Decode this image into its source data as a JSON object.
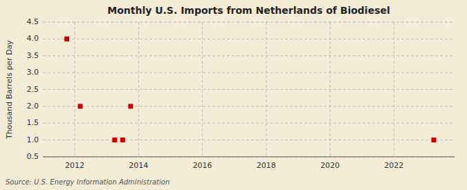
{
  "chart_data": {
    "type": "scatter",
    "title": "Monthly U.S. Imports from Netherlands of Biodiesel",
    "y_label": "Thousand Barrels per Day",
    "annotations": [
      "Source: U.S. Energy Information Administration"
    ],
    "x": [
      2011.75,
      2012.17,
      2013.25,
      2013.5,
      2013.75,
      2023.25
    ],
    "values": [
      4.0,
      2.0,
      1.0,
      1.0,
      2.0,
      1.0
    ],
    "color": "#cc0000",
    "marker": "square",
    "xlim": [
      2011.0,
      2023.9
    ],
    "ylim": [
      0.5,
      4.5
    ],
    "xticks": [
      2012,
      2014,
      2016,
      2018,
      2020,
      2022
    ],
    "yticks": [
      0.5,
      {
        "value": 1.0,
        "label": "1.0"
      },
      1.5,
      {
        "value": 2.0,
        "label": "2.0"
      },
      2.5,
      {
        "value": 3.0,
        "label": "3.0"
      },
      3.5,
      {
        "value": 4.0,
        "label": "4.0"
      },
      4.5
    ],
    "grid": true
  }
}
